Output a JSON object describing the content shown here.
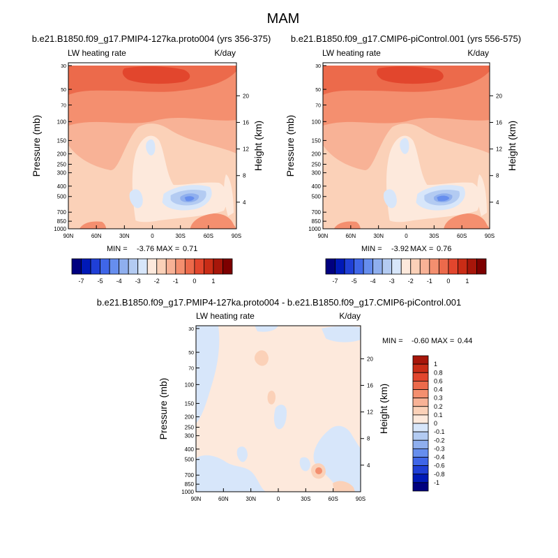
{
  "figure": {
    "title": "MAM",
    "variable_label": "LW heating rate",
    "units_label": "K/day",
    "min_label": "MIN =",
    "max_label": "MAX =",
    "pressure_axis_label": "Pressure (mb)",
    "height_axis_label": "Height (km)"
  },
  "chart_data": [
    {
      "id": "panel-1",
      "type": "heatmap",
      "title": "b.e21.B1850.f09_g17.PMIP4-127ka.proto004 (yrs 356-375)",
      "left_label": "LW heating rate",
      "right_label": "K/day",
      "x_ticks": [
        "90N",
        "60N",
        "30N",
        "0",
        "30S",
        "60S",
        "90S"
      ],
      "x_range": [
        90,
        -90
      ],
      "y_ticks": [
        30,
        50,
        70,
        100,
        150,
        200,
        250,
        300,
        400,
        500,
        700,
        850,
        1000
      ],
      "y_range_mb": [
        30,
        1000
      ],
      "height_ticks_km": [
        4,
        8,
        12,
        16,
        20
      ],
      "min": "-3.76",
      "max": "0.71",
      "colorbar_levels": [
        "-7",
        "-5",
        "-4",
        "-3",
        "-2",
        "-1",
        "0",
        "1"
      ],
      "colorbar_colors": [
        "#00007f",
        "#0019b7",
        "#1f3fd6",
        "#3f66e8",
        "#668eee",
        "#8fafee",
        "#b3cbf2",
        "#d7e6fa",
        "#fde9dc",
        "#fbd1b8",
        "#f8b296",
        "#f48f6f",
        "#ec6a4b",
        "#e2462d",
        "#c92c16",
        "#a7160a",
        "#7d0000"
      ]
    },
    {
      "id": "panel-2",
      "type": "heatmap",
      "title": "b.e21.B1850.f09_g17.CMIP6-piControl.001 (yrs 556-575)",
      "left_label": "LW heating rate",
      "right_label": "K/day",
      "x_ticks": [
        "90N",
        "60N",
        "30N",
        "0",
        "30S",
        "60S",
        "90S"
      ],
      "x_range": [
        90,
        -90
      ],
      "y_ticks": [
        30,
        50,
        70,
        100,
        150,
        200,
        250,
        300,
        400,
        500,
        700,
        850,
        1000
      ],
      "y_range_mb": [
        30,
        1000
      ],
      "height_ticks_km": [
        4,
        8,
        12,
        16,
        20
      ],
      "min": "-3.92",
      "max": "0.76",
      "colorbar_levels": [
        "-7",
        "-5",
        "-4",
        "-3",
        "-2",
        "-1",
        "0",
        "1"
      ],
      "colorbar_colors": [
        "#00007f",
        "#0019b7",
        "#1f3fd6",
        "#3f66e8",
        "#668eee",
        "#8fafee",
        "#b3cbf2",
        "#d7e6fa",
        "#fde9dc",
        "#fbd1b8",
        "#f8b296",
        "#f48f6f",
        "#ec6a4b",
        "#e2462d",
        "#c92c16",
        "#a7160a",
        "#7d0000"
      ]
    },
    {
      "id": "panel-3",
      "type": "heatmap",
      "title": "b.e21.B1850.f09_g17.PMIP4-127ka.proto004 - b.e21.B1850.f09_g17.CMIP6-piControl.001",
      "left_label": "LW heating rate",
      "right_label": "K/day",
      "x_ticks": [
        "90N",
        "60N",
        "30N",
        "0",
        "30S",
        "60S",
        "90S"
      ],
      "x_range": [
        90,
        -90
      ],
      "y_ticks": [
        30,
        50,
        70,
        100,
        150,
        200,
        250,
        300,
        400,
        500,
        700,
        850,
        1000
      ],
      "y_range_mb": [
        30,
        1000
      ],
      "height_ticks_km": [
        4,
        8,
        12,
        16,
        20
      ],
      "min": "-0.60",
      "max": "0.44",
      "colorbar_levels": [
        "1",
        "0.8",
        "0.6",
        "0.4",
        "0.3",
        "0.2",
        "0.1",
        "0",
        "-0.1",
        "-0.2",
        "-0.3",
        "-0.4",
        "-0.6",
        "-0.8",
        "-1"
      ],
      "colorbar_colors": [
        "#a7160a",
        "#c92c16",
        "#e2462d",
        "#ec6a4b",
        "#f48f6f",
        "#f8b296",
        "#fbd1b8",
        "#fde9dc",
        "#d7e6fa",
        "#b3cbf2",
        "#8fafee",
        "#668eee",
        "#3f66e8",
        "#1f3fd6",
        "#0019b7",
        "#00007f"
      ]
    }
  ],
  "colors": {
    "panel_base": "#f8b296",
    "upper_band": "#f48f6f",
    "upper_core": "#ec6a4b",
    "upper_max": "#e2462d",
    "warm_light": "#fbd1b8",
    "warm_pale": "#fde9dc",
    "cool_pale": "#d7e6fa",
    "cool_light": "#b3cbf2",
    "cool_mid": "#8fafee",
    "cool_strong": "#668eee",
    "diff_base": "#fde9dc",
    "diff_blue": "#d7e6fa",
    "diff_warm": "#fbd1b8",
    "diff_hot": "#f48f6f"
  }
}
